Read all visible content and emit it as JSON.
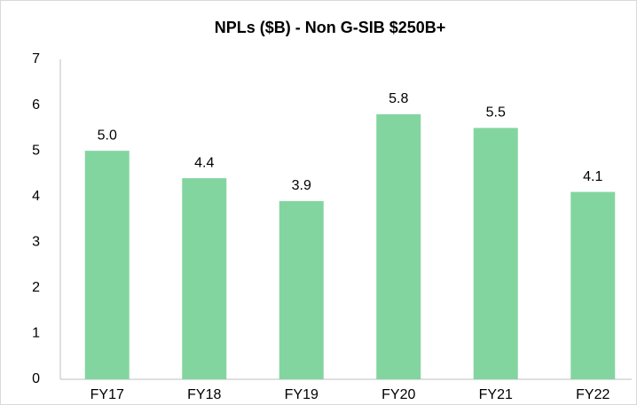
{
  "chart_data": {
    "type": "bar",
    "title": "NPLs ($B) - Non G-SIB $250B+",
    "categories": [
      "FY17",
      "FY18",
      "FY19",
      "FY20",
      "FY21",
      "FY22"
    ],
    "values": [
      5,
      4.4,
      3.9,
      5.8,
      5.5,
      4.1
    ],
    "value_labels": [
      "5.0",
      "4.4",
      "3.9",
      "5.8",
      "5.5",
      "4.1"
    ],
    "color": "#83d5a0",
    "ylim": [
      0,
      7
    ],
    "yticks": [
      0,
      1,
      2,
      3,
      4,
      5,
      6,
      7
    ],
    "grid": false
  }
}
